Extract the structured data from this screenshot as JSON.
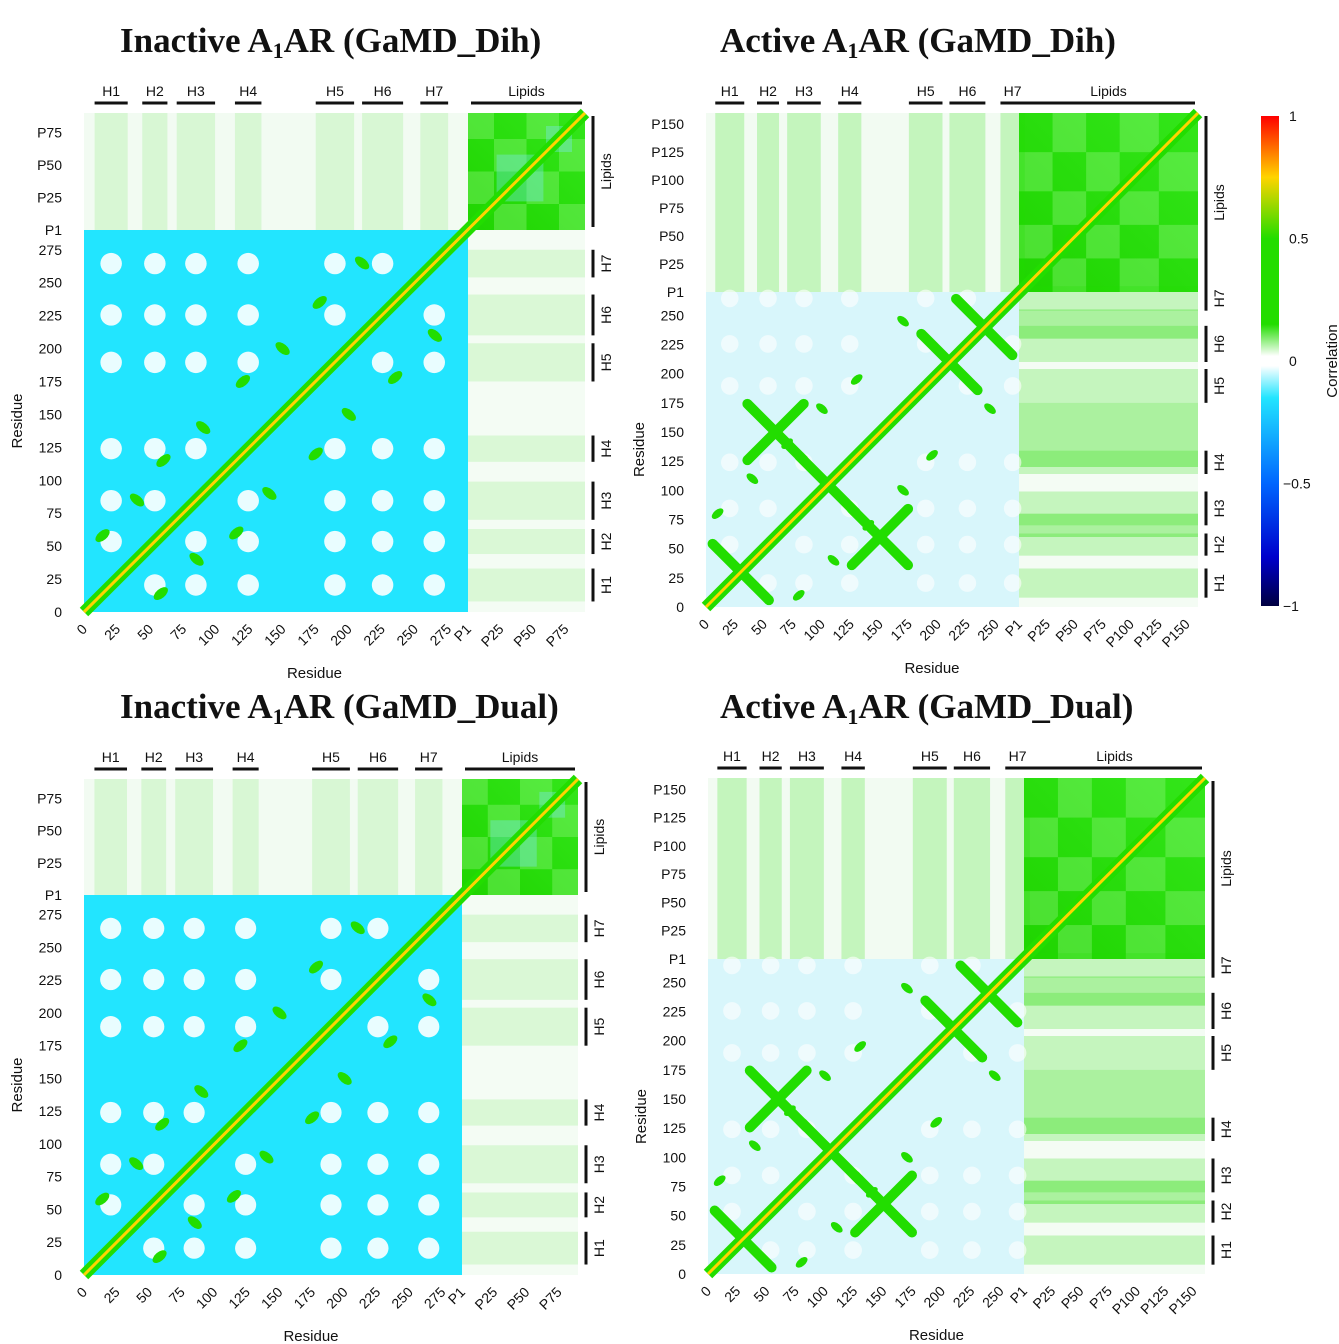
{
  "colorbar": {
    "ticks": [
      "1",
      "0.5",
      "0",
      "−0.5",
      "−1"
    ],
    "tick_values": [
      1,
      0.5,
      0,
      -0.5,
      -1
    ],
    "label": "Correlation",
    "stops": [
      {
        "value": 1,
        "color": "#ff0000"
      },
      {
        "value": 0.75,
        "color": "#ffd400"
      },
      {
        "value": 0.5,
        "color": "#22dd00"
      },
      {
        "value": 0.15,
        "color": "#22dd00"
      },
      {
        "value": 0.02,
        "color": "#ffffff"
      },
      {
        "value": -0.02,
        "color": "#ffffff"
      },
      {
        "value": -0.15,
        "color": "#22e5ff"
      },
      {
        "value": -0.5,
        "color": "#0066ff"
      },
      {
        "value": -0.8,
        "color": "#0000cc"
      },
      {
        "value": -1,
        "color": "#000040"
      }
    ]
  },
  "colors": {
    "negative": "#22e5ff",
    "positive": "#22dd00",
    "diagonal": "#ffd400",
    "neutral": "#ffffff"
  },
  "chart_data": [
    {
      "id": "A",
      "letter": "A",
      "title_pre": "Inactive A",
      "title_sub": "1",
      "title_post": "AR (GaMD_Dih)",
      "type": "heatmap",
      "xlabel": "Residue",
      "ylabel": "Residue",
      "n_residues": 290,
      "n_lipids": 90,
      "dominant": "negative",
      "x_ticks": [
        "0",
        "25",
        "50",
        "75",
        "100",
        "125",
        "150",
        "175",
        "200",
        "225",
        "250",
        "275",
        "P1",
        "P25",
        "P50",
        "P75"
      ],
      "y_ticks": [
        "0",
        "25",
        "50",
        "75",
        "100",
        "125",
        "150",
        "175",
        "200",
        "225",
        "250",
        "275",
        "P1",
        "P25",
        "P50",
        "P75"
      ],
      "segments": [
        "H1",
        "H2",
        "H3",
        "H4",
        "H5",
        "H6",
        "H7",
        "Lipids"
      ],
      "color_range": [
        -1,
        1
      ]
    },
    {
      "id": "B",
      "letter": "B",
      "title_pre": "Active A",
      "title_sub": "1",
      "title_post": "AR (GaMD_Dih)",
      "type": "heatmap",
      "xlabel": "Residue",
      "ylabel": "Residue",
      "n_residues": 270,
      "n_lipids": 160,
      "dominant": "light",
      "x_ticks": [
        "0",
        "25",
        "50",
        "75",
        "100",
        "125",
        "150",
        "175",
        "200",
        "225",
        "250",
        "P1",
        "P25",
        "P50",
        "P75",
        "P100",
        "P125",
        "P150"
      ],
      "y_ticks": [
        "0",
        "25",
        "50",
        "75",
        "100",
        "125",
        "150",
        "175",
        "200",
        "225",
        "250",
        "P1",
        "P25",
        "P50",
        "P75",
        "P100",
        "P125",
        "P150"
      ],
      "segments": [
        "H1",
        "H2",
        "H3",
        "H4",
        "H5",
        "H6",
        "H7",
        "Lipids"
      ],
      "color_range": [
        -1,
        1
      ]
    },
    {
      "id": "C",
      "letter": "C",
      "title_pre": "Inactive A",
      "title_sub": "1",
      "title_post": "AR (GaMD_Dual)",
      "type": "heatmap",
      "xlabel": "Residue",
      "ylabel": "Residue",
      "n_residues": 290,
      "n_lipids": 90,
      "dominant": "negative",
      "x_ticks": [
        "0",
        "25",
        "50",
        "75",
        "100",
        "125",
        "150",
        "175",
        "200",
        "225",
        "250",
        "275",
        "P1",
        "P25",
        "P50",
        "P75"
      ],
      "y_ticks": [
        "0",
        "25",
        "50",
        "75",
        "100",
        "125",
        "150",
        "175",
        "200",
        "225",
        "250",
        "275",
        "P1",
        "P25",
        "P50",
        "P75"
      ],
      "segments": [
        "H1",
        "H2",
        "H3",
        "H4",
        "H5",
        "H6",
        "H7",
        "Lipids"
      ],
      "color_range": [
        -1,
        1
      ]
    },
    {
      "id": "D",
      "letter": "D",
      "title_pre": "Active A",
      "title_sub": "1",
      "title_post": "AR (GaMD_Dual)",
      "type": "heatmap",
      "xlabel": "Residue",
      "ylabel": "Residue",
      "n_residues": 270,
      "n_lipids": 160,
      "dominant": "light",
      "x_ticks": [
        "0",
        "25",
        "50",
        "75",
        "100",
        "125",
        "150",
        "175",
        "200",
        "225",
        "250",
        "P1",
        "P25",
        "P50",
        "P75",
        "P100",
        "P125",
        "P150"
      ],
      "y_ticks": [
        "0",
        "25",
        "50",
        "75",
        "100",
        "125",
        "150",
        "175",
        "200",
        "225",
        "250",
        "P1",
        "P25",
        "P50",
        "P75",
        "P100",
        "P125",
        "P150"
      ],
      "segments": [
        "H1",
        "H2",
        "H3",
        "H4",
        "H5",
        "H6",
        "H7",
        "Lipids"
      ],
      "color_range": [
        -1,
        1
      ]
    }
  ]
}
